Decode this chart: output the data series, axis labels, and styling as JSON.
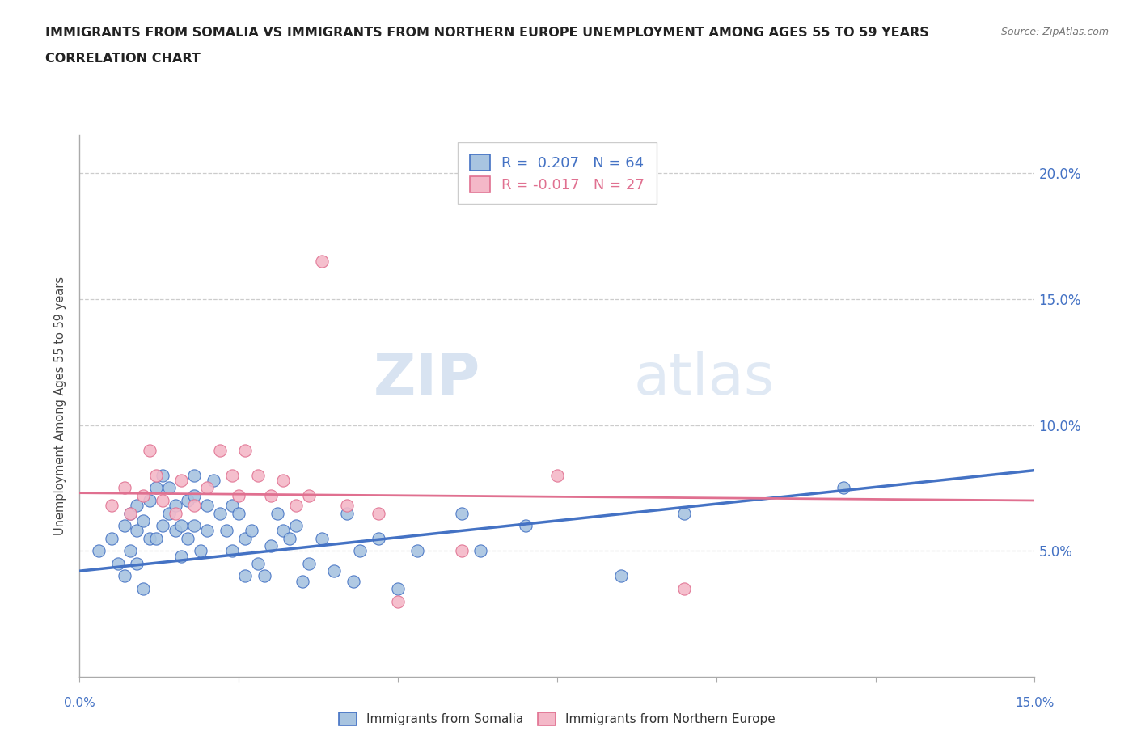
{
  "title_line1": "IMMIGRANTS FROM SOMALIA VS IMMIGRANTS FROM NORTHERN EUROPE UNEMPLOYMENT AMONG AGES 55 TO 59 YEARS",
  "title_line2": "CORRELATION CHART",
  "source": "Source: ZipAtlas.com",
  "ylabel": "Unemployment Among Ages 55 to 59 years",
  "ytick_labels": [
    "5.0%",
    "10.0%",
    "15.0%",
    "20.0%"
  ],
  "ytick_values": [
    0.05,
    0.1,
    0.15,
    0.2
  ],
  "xlim": [
    0.0,
    0.15
  ],
  "ylim": [
    0.0,
    0.215
  ],
  "legend_somalia": "Immigrants from Somalia",
  "legend_n_europe": "Immigrants from Northern Europe",
  "R_somalia": 0.207,
  "N_somalia": 64,
  "R_n_europe": -0.017,
  "N_n_europe": 27,
  "somalia_color": "#a8c4e0",
  "somalia_line_color": "#4472c4",
  "n_europe_color": "#f4b8c8",
  "n_europe_line_color": "#e07090",
  "watermark_zip": "ZIP",
  "watermark_atlas": "atlas",
  "somalia_x": [
    0.003,
    0.005,
    0.006,
    0.007,
    0.007,
    0.008,
    0.008,
    0.009,
    0.009,
    0.009,
    0.01,
    0.01,
    0.011,
    0.011,
    0.012,
    0.012,
    0.013,
    0.013,
    0.014,
    0.014,
    0.015,
    0.015,
    0.016,
    0.016,
    0.017,
    0.017,
    0.018,
    0.018,
    0.018,
    0.019,
    0.02,
    0.02,
    0.021,
    0.022,
    0.023,
    0.024,
    0.024,
    0.025,
    0.026,
    0.026,
    0.027,
    0.028,
    0.029,
    0.03,
    0.031,
    0.032,
    0.033,
    0.034,
    0.035,
    0.036,
    0.038,
    0.04,
    0.042,
    0.043,
    0.044,
    0.047,
    0.05,
    0.053,
    0.06,
    0.063,
    0.07,
    0.085,
    0.095,
    0.12
  ],
  "somalia_y": [
    0.05,
    0.055,
    0.045,
    0.06,
    0.04,
    0.065,
    0.05,
    0.058,
    0.068,
    0.045,
    0.062,
    0.035,
    0.055,
    0.07,
    0.055,
    0.075,
    0.06,
    0.08,
    0.065,
    0.075,
    0.058,
    0.068,
    0.048,
    0.06,
    0.055,
    0.07,
    0.072,
    0.06,
    0.08,
    0.05,
    0.058,
    0.068,
    0.078,
    0.065,
    0.058,
    0.068,
    0.05,
    0.065,
    0.055,
    0.04,
    0.058,
    0.045,
    0.04,
    0.052,
    0.065,
    0.058,
    0.055,
    0.06,
    0.038,
    0.045,
    0.055,
    0.042,
    0.065,
    0.038,
    0.05,
    0.055,
    0.035,
    0.05,
    0.065,
    0.05,
    0.06,
    0.04,
    0.065,
    0.075
  ],
  "n_europe_x": [
    0.005,
    0.007,
    0.008,
    0.01,
    0.011,
    0.012,
    0.013,
    0.015,
    0.016,
    0.018,
    0.02,
    0.022,
    0.024,
    0.025,
    0.026,
    0.028,
    0.03,
    0.032,
    0.034,
    0.036,
    0.038,
    0.042,
    0.047,
    0.05,
    0.06,
    0.075,
    0.095
  ],
  "n_europe_y": [
    0.068,
    0.075,
    0.065,
    0.072,
    0.09,
    0.08,
    0.07,
    0.065,
    0.078,
    0.068,
    0.075,
    0.09,
    0.08,
    0.072,
    0.09,
    0.08,
    0.072,
    0.078,
    0.068,
    0.072,
    0.165,
    0.068,
    0.065,
    0.03,
    0.05,
    0.08,
    0.035
  ],
  "trend_somalia_x0": 0.0,
  "trend_somalia_y0": 0.042,
  "trend_somalia_x1": 0.15,
  "trend_somalia_y1": 0.082,
  "trend_n_europe_x0": 0.0,
  "trend_n_europe_y0": 0.073,
  "trend_n_europe_x1": 0.15,
  "trend_n_europe_y1": 0.07
}
